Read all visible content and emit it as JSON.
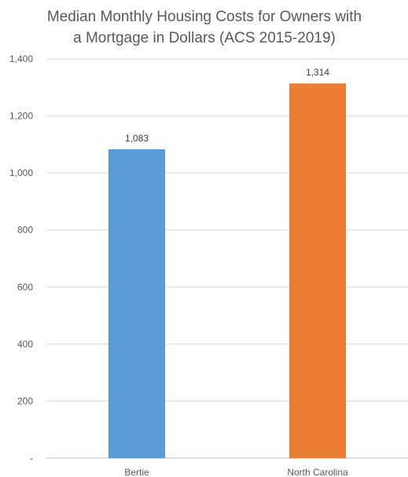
{
  "chart_data": {
    "type": "bar",
    "title": "Median Monthly Housing Costs for Owners with a Mortgage in Dollars (ACS 2015-2019)",
    "title_lines": [
      "Median Monthly Housing Costs for Owners with",
      "a Mortgage in Dollars (ACS 2015-2019)"
    ],
    "categories": [
      "Bertie",
      "North Carolina"
    ],
    "values": [
      1083,
      1314
    ],
    "value_labels": [
      "1,083",
      "1,314"
    ],
    "colors": [
      "#5b9bd5",
      "#ed7d31"
    ],
    "xlabel": "",
    "ylabel": "",
    "ylim": [
      0,
      1400
    ],
    "yticks": [
      0,
      200,
      400,
      600,
      800,
      1000,
      1200,
      1400
    ],
    "ytick_labels": [
      "-",
      "200",
      "400",
      "600",
      "800",
      "1,000",
      "1,200",
      "1,400"
    ],
    "grid": true,
    "legend": "none",
    "gridline_color": "#d9d9d9",
    "axis_color": "#bfbfbf"
  }
}
